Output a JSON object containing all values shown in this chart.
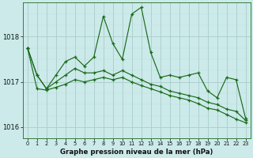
{
  "title": "Graphe pression niveau de la mer (hPa)",
  "bg_color": "#cceaea",
  "grid_color_major": "#aacccc",
  "grid_color_minor": "#bbdddd",
  "line_color": "#1a6b1a",
  "ylim": [
    1015.75,
    1018.75
  ],
  "yticks": [
    1016,
    1017,
    1018
  ],
  "hours": [
    0,
    1,
    2,
    3,
    4,
    5,
    6,
    7,
    8,
    9,
    10,
    11,
    12,
    13,
    14,
    15,
    16,
    17,
    18,
    19,
    20,
    21,
    22,
    23
  ],
  "line1": [
    1017.75,
    1017.15,
    1016.85,
    1017.15,
    1017.45,
    1017.55,
    1017.35,
    1017.55,
    1018.45,
    1017.85,
    1017.5,
    1018.5,
    1018.65,
    1017.65,
    1017.1,
    1017.15,
    1017.1,
    1017.15,
    1017.2,
    1016.8,
    1016.65,
    1017.1,
    1017.05,
    1016.2
  ],
  "line2": [
    1017.75,
    1017.15,
    1016.85,
    1017.0,
    1017.15,
    1017.3,
    1017.2,
    1017.2,
    1017.25,
    1017.15,
    1017.25,
    1017.15,
    1017.05,
    1016.95,
    1016.9,
    1016.8,
    1016.75,
    1016.7,
    1016.65,
    1016.55,
    1016.5,
    1016.4,
    1016.35,
    1016.15
  ],
  "line3": [
    1017.75,
    1016.85,
    1016.82,
    1016.88,
    1016.95,
    1017.05,
    1017.0,
    1017.05,
    1017.1,
    1017.05,
    1017.1,
    1017.0,
    1016.92,
    1016.85,
    1016.78,
    1016.7,
    1016.65,
    1016.6,
    1016.52,
    1016.42,
    1016.38,
    1016.28,
    1016.18,
    1016.1
  ]
}
